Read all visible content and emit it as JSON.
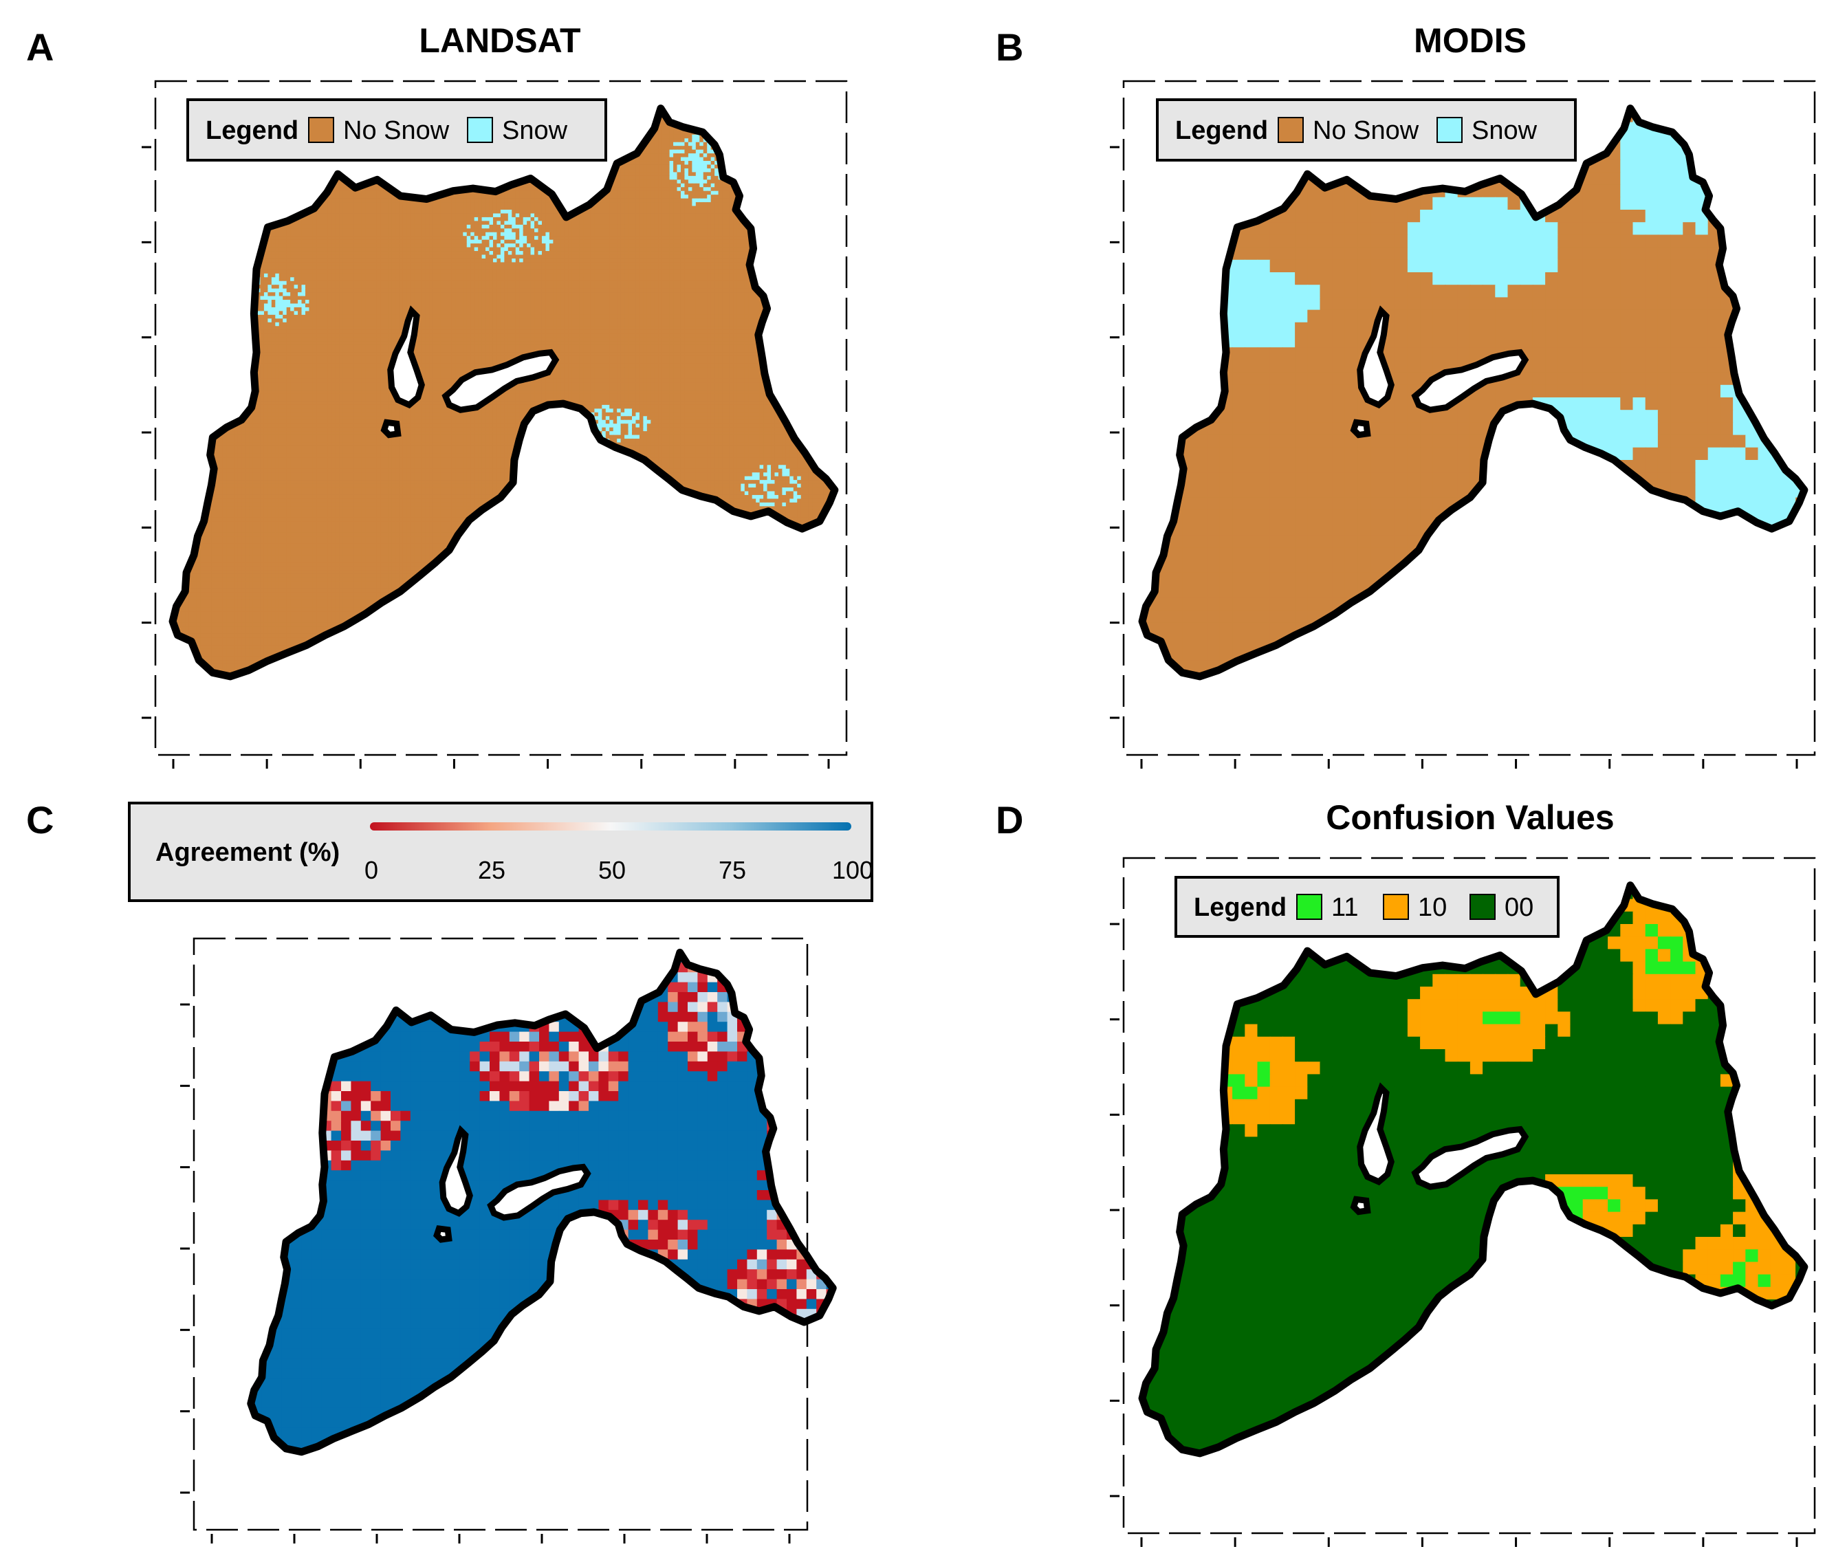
{
  "figure": {
    "panels": [
      {
        "id": "A",
        "letter": "A",
        "title": "LANDSAT",
        "legend": {
          "title": "Legend",
          "items": [
            {
              "label": "No Snow",
              "color": "#cd853f"
            },
            {
              "label": "Snow",
              "color": "#98f5ff"
            }
          ]
        }
      },
      {
        "id": "B",
        "letter": "B",
        "title": "MODIS",
        "legend": {
          "title": "Legend",
          "items": [
            {
              "label": "No Snow",
              "color": "#cd853f"
            },
            {
              "label": "Snow",
              "color": "#98f5ff"
            }
          ]
        }
      },
      {
        "id": "C",
        "letter": "C",
        "title": "",
        "colorbar": {
          "title": "Agreement (%)",
          "ticks": [
            "0",
            "25",
            "50",
            "75",
            "100"
          ],
          "colors": [
            "#d7191c",
            "#f4a582",
            "#f7f7f7",
            "#92c5de",
            "#0571b0"
          ]
        }
      },
      {
        "id": "D",
        "letter": "D",
        "title": "Confusion Values",
        "legend": {
          "title": "Legend",
          "items": [
            {
              "label": "11",
              "color": "#22ee22"
            },
            {
              "label": "10",
              "color": "#ffa500"
            },
            {
              "label": "00",
              "color": "#006400"
            }
          ]
        }
      }
    ],
    "colors": {
      "no_snow": "#cd853f",
      "snow": "#98f5ff",
      "agree_high": "#0571b0",
      "agree_low": "#d7191c",
      "c11": "#22ee22",
      "c10": "#ffa500",
      "c00": "#006400",
      "legend_bg": "#e6e6e6",
      "outline": "#000000"
    }
  }
}
